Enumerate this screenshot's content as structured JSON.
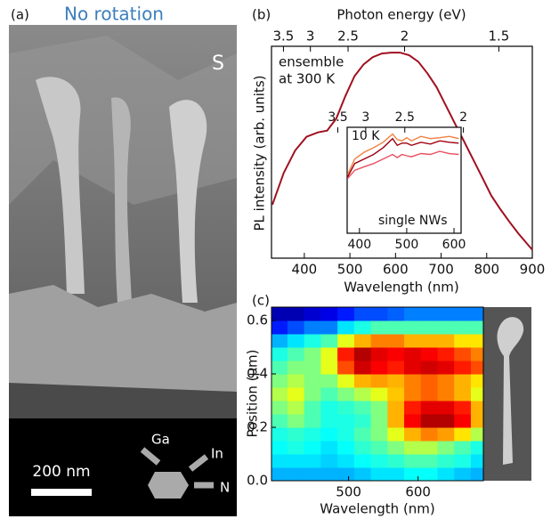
{
  "panel_a": {
    "label": "(a)",
    "title": "No rotation",
    "marker": "S",
    "scale_bar": "200 nm",
    "labels": [
      "Ga",
      "In",
      "N"
    ]
  },
  "chart_data": [
    {
      "type": "line",
      "panel": "(b)",
      "x2label": "Photon energy (eV)",
      "xlabel": "Wavelength (nm)",
      "ylabel": "PL intensity (arb. units)",
      "annotation": [
        "ensemble",
        "at 300 K"
      ],
      "x": [
        330,
        355,
        380,
        405,
        430,
        450,
        470,
        490,
        510,
        530,
        550,
        570,
        590,
        610,
        630,
        650,
        670,
        690,
        710,
        730,
        750,
        770,
        790,
        810,
        830,
        850,
        870,
        900
      ],
      "values": [
        0.32,
        0.64,
        1.04,
        1.4,
        1.54,
        1.6,
        2.07,
        3.39,
        5.22,
        6.75,
        7.89,
        8.55,
        8.71,
        8.71,
        8.22,
        7.16,
        5.55,
        4.12,
        2.78,
        1.88,
        1.27,
        0.86,
        0.58,
        0.39,
        0.29,
        0.22,
        0.17,
        0.12
      ],
      "color": "#a01020",
      "yscale": "log",
      "xlim": [
        328,
        900
      ],
      "ylim": [
        0.1,
        10
      ],
      "xticks": [
        400,
        500,
        600,
        700,
        800,
        900
      ],
      "x2ticks": [
        3.5,
        3,
        2.5,
        2,
        1.5
      ]
    },
    {
      "type": "line",
      "annotation": [
        "10 K",
        "single NWs"
      ],
      "x": [
        375,
        390,
        410,
        430,
        450,
        470,
        480,
        490,
        500,
        510,
        530,
        550,
        570,
        590,
        610
      ],
      "series": [
        {
          "color": "#f08040",
          "values": [
            1.27,
            2.52,
            3.39,
            4.12,
            5.22,
            7.45,
            5.87,
            5.55,
            6.36,
            5.55,
            6.75,
            6.11,
            6.36,
            6.75,
            6.11
          ]
        },
        {
          "color": "#a00010",
          "values": [
            1.15,
            2.07,
            2.52,
            3.07,
            4.12,
            6.11,
            4.55,
            5.02,
            5.02,
            4.55,
            5.22,
            4.83,
            5.55,
            5.22,
            5.02
          ]
        },
        {
          "color": "#e85060",
          "values": [
            1.08,
            1.54,
            1.8,
            2.07,
            2.52,
            3.07,
            2.68,
            3.07,
            2.9,
            2.78,
            3.19,
            3.07,
            3.52,
            3.19,
            3.07
          ]
        }
      ],
      "yscale": "log",
      "xlim": [
        374,
        615
      ],
      "ylim": [
        0.1,
        10
      ],
      "xticks": [
        400,
        500,
        600
      ],
      "x2ticks": [
        3.5,
        3,
        2.5,
        2
      ]
    },
    {
      "type": "heatmap",
      "panel": "(c)",
      "xlabel": "Wavelength (nm)",
      "ylabel": "Position (µm)",
      "colormap": "jet",
      "x": [
        400,
        424,
        448,
        472,
        496,
        520,
        544,
        568,
        592,
        616,
        640,
        664,
        688
      ],
      "y": [
        0.025,
        0.075,
        0.125,
        0.175,
        0.225,
        0.275,
        0.325,
        0.375,
        0.425,
        0.475,
        0.525,
        0.575,
        0.625
      ],
      "z": [
        [
          0.3,
          0.3,
          0.3,
          0.3,
          0.3,
          0.32,
          0.35,
          0.35,
          0.38,
          0.38,
          0.35,
          0.32,
          0.3
        ],
        [
          0.35,
          0.35,
          0.35,
          0.33,
          0.35,
          0.38,
          0.4,
          0.42,
          0.45,
          0.45,
          0.42,
          0.4,
          0.35
        ],
        [
          0.38,
          0.4,
          0.38,
          0.35,
          0.38,
          0.42,
          0.45,
          0.5,
          0.55,
          0.55,
          0.5,
          0.45,
          0.4
        ],
        [
          0.4,
          0.42,
          0.4,
          0.38,
          0.4,
          0.45,
          0.5,
          0.6,
          0.7,
          0.75,
          0.72,
          0.65,
          0.55
        ],
        [
          0.45,
          0.5,
          0.45,
          0.4,
          0.4,
          0.42,
          0.5,
          0.7,
          0.88,
          0.95,
          0.95,
          0.88,
          0.7
        ],
        [
          0.5,
          0.55,
          0.45,
          0.4,
          0.42,
          0.45,
          0.5,
          0.7,
          0.85,
          0.9,
          0.9,
          0.85,
          0.7
        ],
        [
          0.55,
          0.6,
          0.5,
          0.45,
          0.5,
          0.55,
          0.6,
          0.68,
          0.75,
          0.78,
          0.75,
          0.7,
          0.6
        ],
        [
          0.5,
          0.55,
          0.5,
          0.5,
          0.6,
          0.7,
          0.72,
          0.7,
          0.75,
          0.78,
          0.75,
          0.7,
          0.65
        ],
        [
          0.45,
          0.5,
          0.5,
          0.6,
          0.8,
          0.92,
          0.88,
          0.85,
          0.9,
          0.92,
          0.9,
          0.85,
          0.8
        ],
        [
          0.4,
          0.45,
          0.5,
          0.6,
          0.85,
          0.95,
          0.9,
          0.88,
          0.9,
          0.88,
          0.85,
          0.8,
          0.75
        ],
        [
          0.3,
          0.35,
          0.4,
          0.45,
          0.6,
          0.7,
          0.75,
          0.75,
          0.7,
          0.7,
          0.7,
          0.65,
          0.65
        ],
        [
          0.15,
          0.2,
          0.25,
          0.25,
          0.35,
          0.4,
          0.45,
          0.45,
          0.45,
          0.45,
          0.45,
          0.45,
          0.45
        ],
        [
          0.05,
          0.05,
          0.08,
          0.1,
          0.15,
          0.2,
          0.2,
          0.22,
          0.25,
          0.25,
          0.25,
          0.25,
          0.25
        ]
      ],
      "xlim": [
        389,
        694
      ],
      "ylim": [
        0,
        0.65
      ],
      "xticks": [
        500,
        600
      ],
      "yticks": [
        {
          "value": 0,
          "label": "0.0"
        },
        0.2,
        0.4,
        0.6
      ]
    }
  ]
}
